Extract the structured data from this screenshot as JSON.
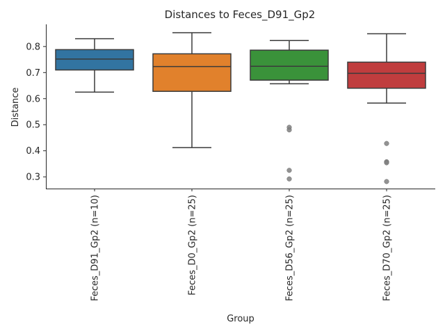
{
  "chart_data": {
    "type": "box",
    "title": "Distances to Feces_D91_Gp2",
    "xlabel": "Group",
    "ylabel": "Distance",
    "ylim": [
      0.255,
      0.885
    ],
    "yticks": [
      0.3,
      0.4,
      0.5,
      0.6,
      0.7,
      0.8
    ],
    "ytick_labels": [
      "0.3",
      "0.4",
      "0.5",
      "0.6",
      "0.7",
      "0.8"
    ],
    "grid": false,
    "series": [
      {
        "category": "Feces_D91_Gp2 (n=10)",
        "color": "#3274a1",
        "whislo": 0.625,
        "q1": 0.71,
        "med": 0.752,
        "q3": 0.788,
        "whishi": 0.83,
        "fliers": []
      },
      {
        "category": "Feces_D0_Gp2 (n=25)",
        "color": "#e1812c",
        "whislo": 0.412,
        "q1": 0.628,
        "med": 0.723,
        "q3": 0.772,
        "whishi": 0.853,
        "fliers": []
      },
      {
        "category": "Feces_D56_Gp2 (n=25)",
        "color": "#3a923a",
        "whislo": 0.657,
        "q1": 0.671,
        "med": 0.724,
        "q3": 0.786,
        "whishi": 0.823,
        "fliers": [
          0.49,
          0.48,
          0.325,
          0.292
        ]
      },
      {
        "category": "Feces_D70_Gp2 (n=25)",
        "color": "#c03d3e",
        "whislo": 0.583,
        "q1": 0.64,
        "med": 0.697,
        "q3": 0.74,
        "whishi": 0.849,
        "fliers": [
          0.428,
          0.358,
          0.354,
          0.282
        ]
      }
    ]
  }
}
